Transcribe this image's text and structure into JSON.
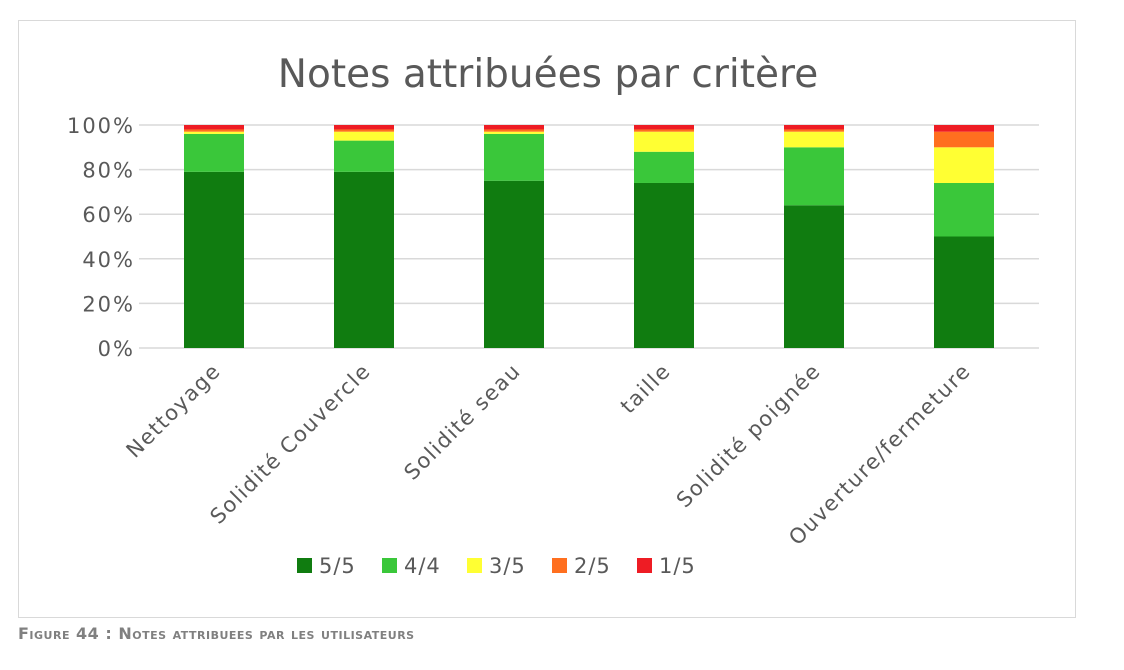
{
  "chart_data": {
    "type": "bar",
    "stacked": true,
    "percent": true,
    "title": "Notes attribuées par critère",
    "xlabel": "",
    "ylabel": "",
    "ylim": [
      0,
      100
    ],
    "yticks": [
      "0%",
      "20%",
      "40%",
      "60%",
      "80%",
      "100%"
    ],
    "grid": true,
    "legend_position": "bottom",
    "categories": [
      "Nettoyage",
      "Solidité Couvercle",
      "Solidité seau",
      "taille",
      "Solidité poignée",
      "Ouverture/fermeture"
    ],
    "series": [
      {
        "name": "5/5",
        "color": "#107c10",
        "values": [
          79,
          79,
          75,
          74,
          64,
          50
        ]
      },
      {
        "name": "4/4",
        "color": "#3ac73a",
        "values": [
          17,
          14,
          21,
          14,
          26,
          24
        ]
      },
      {
        "name": "3/5",
        "color": "#ffff33",
        "values": [
          1,
          4,
          1,
          9,
          7,
          16
        ]
      },
      {
        "name": "2/5",
        "color": "#ff6f1f",
        "values": [
          1,
          1,
          1,
          1,
          1,
          7
        ]
      },
      {
        "name": "1/5",
        "color": "#ee1c24",
        "values": [
          2,
          2,
          2,
          2,
          2,
          3
        ]
      }
    ]
  },
  "caption": "Figure 44 : Notes attribuees par les utilisateurs"
}
